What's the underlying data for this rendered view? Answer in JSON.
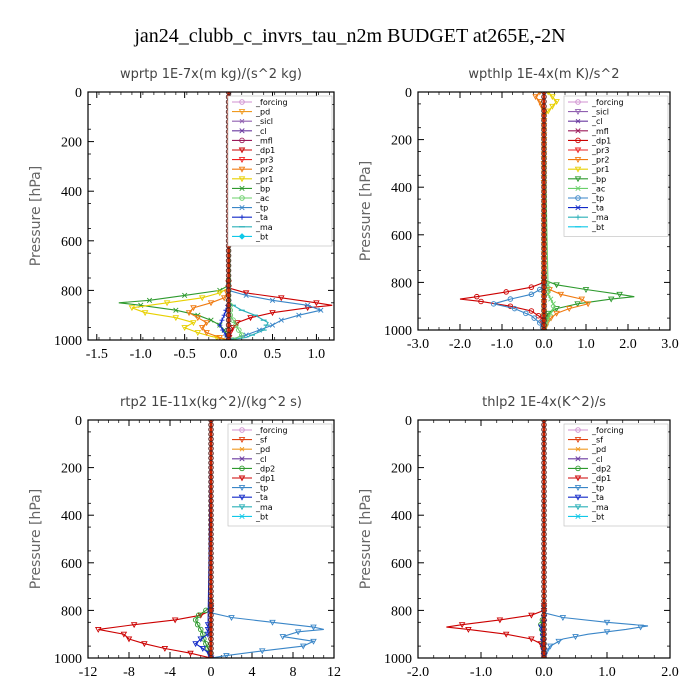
{
  "title": "jan24_clubb_c_invrs_tau_n2m  BUDGET at265E,-2N",
  "colors": {
    "forcing": "#d090d0",
    "sicl": "#9060b0",
    "cl": "#6a3aa0",
    "mfl": "#9b1a5a",
    "dp1": "#cc0000",
    "pr3": "#ee2020",
    "pr2": "#f07a10",
    "pr1": "#e8d000",
    "bp": "#2e9a2e",
    "ac": "#6ad06a",
    "tp": "#3a86c8",
    "ta": "#1028c8",
    "ma": "#2ab0b8",
    "bt": "#10c8e8",
    "sf": "#e04010",
    "pd": "#f09a20",
    "dp2": "#2e9a2e",
    "thick": "#cc2200"
  },
  "chart_data": [
    {
      "type": "line",
      "title": "wprtp  1E-7x(m kg)/(s^2 kg)",
      "ylabel": "Pressure [hPa]",
      "xlim": [
        -1.6,
        1.2
      ],
      "ylim": [
        1000,
        0
      ],
      "xticks": [
        "-1.5",
        "-1.0",
        "-0.5",
        "0.0",
        "0.5",
        "1.0"
      ],
      "xtick_values": [
        -1.5,
        -1.0,
        -0.5,
        0.0,
        0.5,
        1.0
      ],
      "yticks": [
        "0",
        "200",
        "400",
        "600",
        "800",
        "1000"
      ],
      "ytick_values": [
        0,
        200,
        400,
        600,
        800,
        1000
      ],
      "legend_position": "top-right",
      "legend": [
        "_forcing",
        "_pd",
        "_sicl",
        "_cl",
        "_mfl",
        "_dp1",
        "_pr3",
        "_pr2",
        "_pr1",
        "_bp",
        "_ac",
        "_tp",
        "_ta",
        "_ma",
        "_bt"
      ],
      "legend_keys": [
        "forcing",
        "pd",
        "sicl",
        "cl",
        "mfl",
        "dp1",
        "pr3",
        "pr2",
        "pr1",
        "bp",
        "ac",
        "tp",
        "ta",
        "ma",
        "bt"
      ],
      "series": [
        {
          "key": "bp",
          "p": [
            0,
            780,
            800,
            820,
            840,
            850,
            860,
            880,
            900,
            920,
            940,
            960,
            980,
            1000
          ],
          "v": [
            0,
            0,
            -0.1,
            -0.5,
            -0.9,
            -1.25,
            -1.0,
            -0.6,
            -0.35,
            -0.2,
            -0.1,
            -0.05,
            -0.02,
            0
          ]
        },
        {
          "key": "pr1",
          "p": [
            0,
            790,
            810,
            830,
            850,
            870,
            890,
            910,
            930,
            950,
            970,
            985,
            1000
          ],
          "v": [
            0,
            0,
            -0.1,
            -0.3,
            -0.7,
            -1.1,
            -0.95,
            -0.6,
            -0.4,
            -0.5,
            -0.35,
            -0.2,
            0
          ]
        },
        {
          "key": "pr2",
          "p": [
            0,
            800,
            830,
            850,
            870,
            890,
            910,
            930,
            950,
            970,
            990,
            1000
          ],
          "v": [
            0,
            0,
            -0.05,
            -0.2,
            -0.4,
            -0.45,
            -0.35,
            -0.25,
            -0.3,
            -0.25,
            -0.1,
            0
          ]
        },
        {
          "key": "dp1",
          "p": [
            0,
            790,
            810,
            830,
            850,
            860,
            870,
            890,
            910,
            930,
            950,
            970,
            1000
          ],
          "v": [
            0,
            0,
            0.2,
            0.6,
            1.0,
            1.18,
            0.9,
            0.5,
            0.25,
            0.1,
            0.05,
            0.02,
            0
          ]
        },
        {
          "key": "tp",
          "p": [
            0,
            800,
            820,
            840,
            860,
            880,
            900,
            920,
            940,
            960,
            980,
            1000
          ],
          "v": [
            0,
            0,
            0.2,
            0.5,
            0.9,
            1.05,
            0.8,
            0.6,
            0.5,
            0.35,
            0.2,
            0
          ]
        },
        {
          "key": "ma",
          "p": [
            0,
            850,
            880,
            900,
            930,
            960,
            990,
            1000
          ],
          "v": [
            0,
            0,
            0.15,
            0.3,
            0.45,
            0.4,
            0.2,
            0
          ]
        },
        {
          "key": "ac",
          "p": [
            0,
            900,
            950,
            980,
            1000
          ],
          "v": [
            0,
            0.02,
            0.1,
            0.15,
            0.05
          ]
        },
        {
          "key": "ta",
          "p": [
            0,
            850,
            900,
            940,
            970,
            1000
          ],
          "v": [
            0,
            0,
            -0.05,
            -0.1,
            -0.05,
            0
          ]
        },
        {
          "key": "cl",
          "p": [
            0,
            900,
            1000
          ],
          "v": [
            0,
            0,
            0
          ]
        },
        {
          "key": "forcing",
          "p": [
            0,
            1000
          ],
          "v": [
            0,
            0
          ]
        }
      ]
    },
    {
      "type": "line",
      "title": "wpthlp  1E-4x(m K)/s^2",
      "ylabel": "Pressure [hPa]",
      "xlim": [
        -3.0,
        3.0
      ],
      "ylim": [
        1000,
        0
      ],
      "xticks": [
        "-3.0",
        "-2.0",
        "-1.0",
        "0.0",
        "1.0",
        "2.0",
        "3.0"
      ],
      "xtick_values": [
        -3.0,
        -2.0,
        -1.0,
        0.0,
        1.0,
        2.0,
        3.0
      ],
      "yticks": [
        "0",
        "200",
        "400",
        "600",
        "800",
        "1000"
      ],
      "ytick_values": [
        0,
        200,
        400,
        600,
        800,
        1000
      ],
      "legend_position": "top-right",
      "legend": [
        "_forcing",
        "_sicl",
        "_cl",
        "_mfl",
        "_dp1",
        "_pr3",
        "_pr2",
        "_pr1",
        "_bp",
        "_ac",
        "_tp",
        "_ta",
        "_ma",
        "_bt"
      ],
      "legend_keys": [
        "forcing",
        "sicl",
        "cl",
        "mfl",
        "dp1",
        "pr3",
        "pr2",
        "pr1",
        "bp",
        "ac",
        "tp",
        "ta",
        "ma",
        "bt"
      ],
      "series": [
        {
          "key": "pr1",
          "p": [
            0,
            20,
            40,
            60,
            80,
            100,
            1000
          ],
          "v": [
            0.1,
            0.2,
            0.3,
            0.2,
            0.1,
            0,
            0
          ]
        },
        {
          "key": "pr2",
          "p": [
            0,
            20,
            40,
            60,
            80,
            1000
          ],
          "v": [
            -0.1,
            -0.2,
            -0.1,
            -0.05,
            0,
            0
          ]
        },
        {
          "key": "bp",
          "p": [
            0,
            790,
            810,
            830,
            850,
            860,
            870,
            890,
            910,
            930,
            960,
            1000
          ],
          "v": [
            0,
            0,
            0.3,
            1.0,
            1.8,
            2.15,
            1.6,
            0.8,
            0.3,
            0.1,
            0.02,
            0
          ]
        },
        {
          "key": "pr2",
          "p": [
            0,
            820,
            850,
            870,
            890,
            910,
            930,
            960,
            1000
          ],
          "v": [
            0,
            0,
            0.4,
            0.9,
            1.05,
            0.6,
            0.3,
            0.1,
            0
          ]
        },
        {
          "key": "dp1",
          "p": [
            0,
            800,
            820,
            840,
            860,
            870,
            880,
            900,
            920,
            950,
            1000
          ],
          "v": [
            0,
            0,
            -0.3,
            -0.9,
            -1.6,
            -2.0,
            -1.5,
            -0.8,
            -0.3,
            -0.05,
            0
          ]
        },
        {
          "key": "tp",
          "p": [
            0,
            820,
            850,
            870,
            890,
            910,
            940,
            970,
            1000
          ],
          "v": [
            0,
            0,
            -0.3,
            -0.8,
            -1.2,
            -0.7,
            -0.3,
            -0.1,
            0
          ]
        },
        {
          "key": "ac",
          "p": [
            0,
            850,
            900,
            950,
            1000
          ],
          "v": [
            0,
            0.1,
            0.25,
            0.1,
            0
          ]
        },
        {
          "key": "forcing",
          "p": [
            0,
            1000
          ],
          "v": [
            0,
            0
          ]
        }
      ]
    },
    {
      "type": "line",
      "title": "rtp2  1E-11x(kg^2)/(kg^2 s)",
      "ylabel": "Pressure [hPa]",
      "xlim": [
        -12,
        12
      ],
      "ylim": [
        1000,
        0
      ],
      "xticks": [
        "-12",
        "-8",
        "-4",
        "0",
        "4",
        "8",
        "12"
      ],
      "xtick_values": [
        -12,
        -8,
        -4,
        0,
        4,
        8,
        12
      ],
      "yticks": [
        "0",
        "200",
        "400",
        "600",
        "800",
        "1000"
      ],
      "ytick_values": [
        0,
        200,
        400,
        600,
        800,
        1000
      ],
      "legend_position": "top-right",
      "legend": [
        "_forcing",
        "_sf",
        "_pd",
        "_cl",
        "_dp2",
        "_dp1",
        "_tp",
        "_ta",
        "_ma",
        "_bt"
      ],
      "legend_keys": [
        "forcing",
        "sf",
        "pd",
        "cl",
        "dp2",
        "dp1",
        "tp",
        "ta",
        "ma",
        "bt"
      ],
      "series": [
        {
          "key": "dp1",
          "p": [
            0,
            800,
            820,
            840,
            860,
            880,
            900,
            920,
            940,
            960,
            980,
            1000
          ],
          "v": [
            0,
            0,
            -1.0,
            -3.5,
            -7.5,
            -11.0,
            -8.5,
            -8.0,
            -6.5,
            -4.5,
            -2.0,
            0
          ]
        },
        {
          "key": "dp2",
          "p": [
            0,
            780,
            800,
            820,
            840,
            860,
            880,
            900,
            920,
            940,
            960,
            980,
            1000
          ],
          "v": [
            0,
            0,
            -0.5,
            -1.2,
            -1.5,
            -1.3,
            -1.0,
            -0.8,
            -0.7,
            -0.5,
            -0.3,
            -0.1,
            0
          ]
        },
        {
          "key": "tp",
          "p": [
            0,
            810,
            830,
            850,
            870,
            880,
            890,
            910,
            930,
            950,
            970,
            990,
            1000
          ],
          "v": [
            0,
            0,
            2.0,
            6.0,
            10.0,
            11.0,
            8.5,
            7.0,
            10.0,
            9.0,
            5.0,
            1.5,
            0
          ]
        },
        {
          "key": "ta",
          "p": [
            0,
            900,
            920,
            940,
            960,
            980,
            1000
          ],
          "v": [
            0,
            -0.3,
            -1.0,
            -1.5,
            -0.8,
            -0.2,
            0
          ]
        },
        {
          "key": "forcing",
          "p": [
            0,
            1000
          ],
          "v": [
            0,
            0
          ]
        }
      ]
    },
    {
      "type": "line",
      "title": "thlp2  1E-4x(K^2)/s",
      "ylabel": "Pressure [hPa]",
      "xlim": [
        -2.0,
        2.0
      ],
      "ylim": [
        1000,
        0
      ],
      "xticks": [
        "-2.0",
        "-1.0",
        "0.0",
        "1.0",
        "2.0"
      ],
      "xtick_values": [
        -2.0,
        -1.0,
        0.0,
        1.0,
        2.0
      ],
      "yticks": [
        "0",
        "200",
        "400",
        "600",
        "800",
        "1000"
      ],
      "ytick_values": [
        0,
        200,
        400,
        600,
        800,
        1000
      ],
      "legend_position": "top-right",
      "legend": [
        "_forcing",
        "_sf",
        "_pd",
        "_cl",
        "_dp2",
        "_dp1",
        "_tp",
        "_ta",
        "_ma",
        "_bt"
      ],
      "legend_keys": [
        "forcing",
        "sf",
        "pd",
        "cl",
        "dp2",
        "dp1",
        "tp",
        "ta",
        "ma",
        "bt"
      ],
      "series": [
        {
          "key": "dp1",
          "p": [
            0,
            800,
            820,
            840,
            860,
            870,
            880,
            900,
            920,
            940,
            970,
            1000
          ],
          "v": [
            0,
            0,
            -0.2,
            -0.7,
            -1.3,
            -1.55,
            -1.2,
            -0.6,
            -0.2,
            -0.05,
            0,
            0
          ]
        },
        {
          "key": "dp2",
          "p": [
            0,
            820,
            860,
            900,
            1000
          ],
          "v": [
            0,
            0,
            -0.05,
            -0.02,
            0
          ]
        },
        {
          "key": "tp",
          "p": [
            0,
            810,
            830,
            850,
            865,
            880,
            900,
            920,
            950,
            980,
            1000
          ],
          "v": [
            0,
            0,
            0.3,
            1.0,
            1.65,
            1.3,
            0.7,
            0.3,
            0.1,
            0.02,
            0
          ]
        },
        {
          "key": "ta",
          "p": [
            0,
            850,
            870,
            890,
            1000
          ],
          "v": [
            0,
            0,
            -0.04,
            -0.02,
            0
          ]
        },
        {
          "key": "forcing",
          "p": [
            0,
            1000
          ],
          "v": [
            0,
            0
          ]
        }
      ]
    }
  ]
}
